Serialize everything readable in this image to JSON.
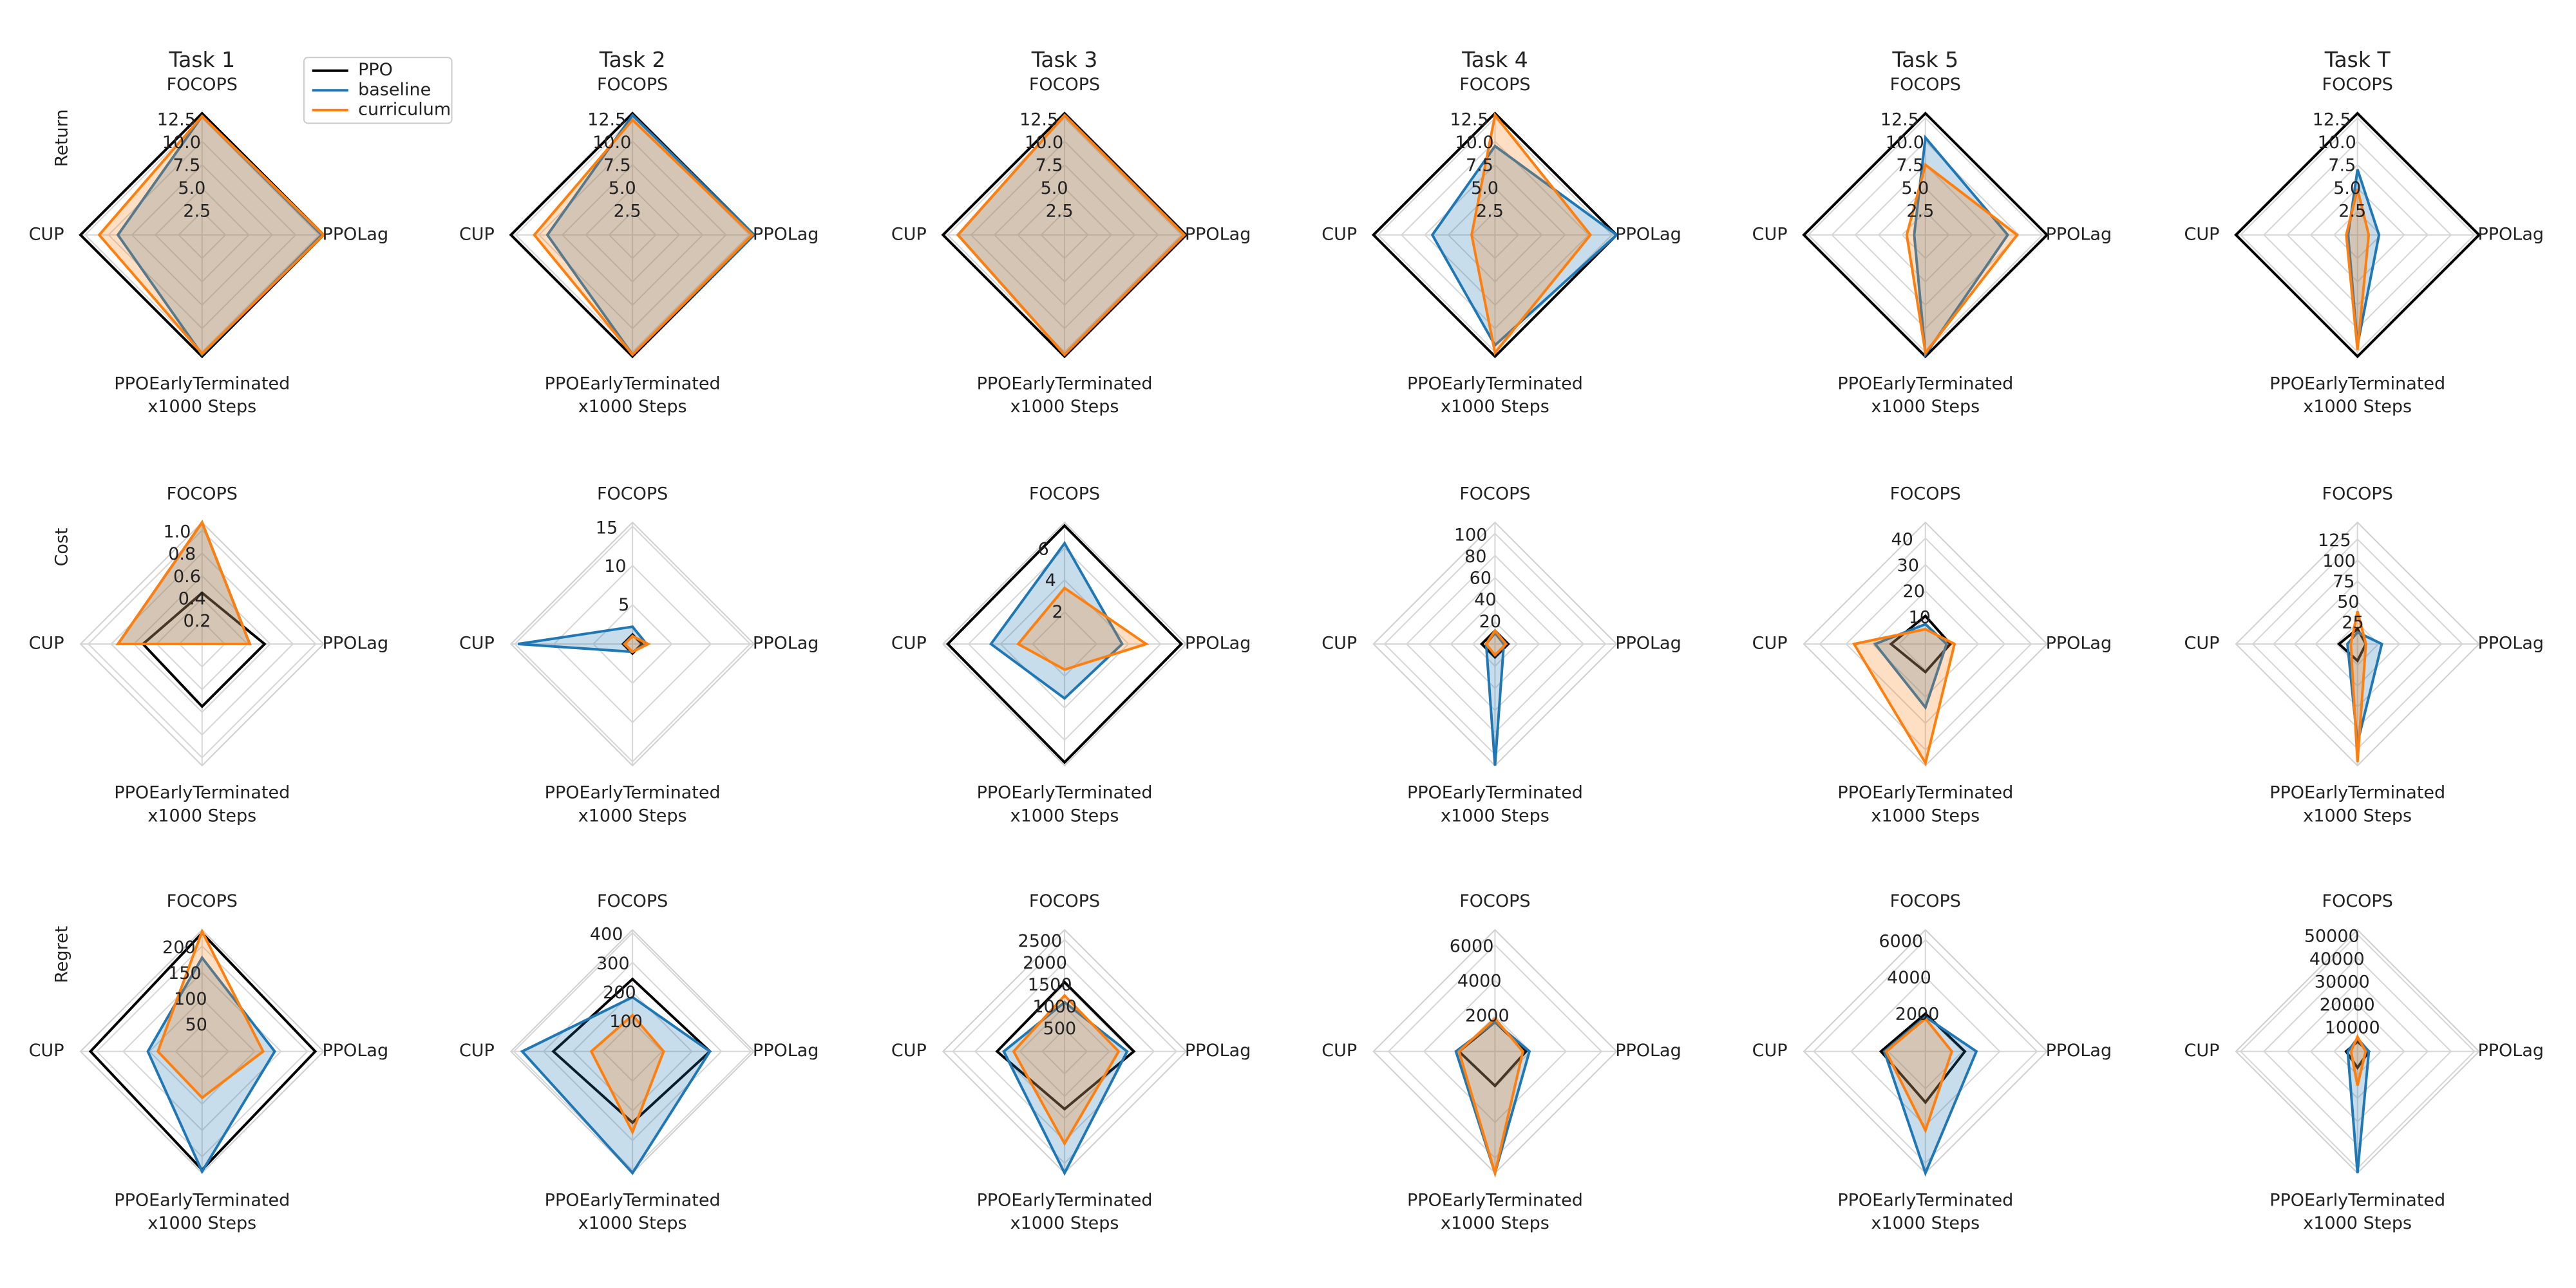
{
  "chart_data": [
    {
      "type": "radar",
      "title": "Task 1",
      "ylabel": "Return",
      "xlabel": "x1000 Steps",
      "legend": "upper right",
      "axes": [
        "FOCOPS",
        "CUP",
        "PPOEarlyTerminated",
        "PPOLag"
      ],
      "rlim": [
        0,
        13
      ],
      "rticks": [
        2.5,
        {
          "value": 5,
          "label": "5.0"
        },
        7.5,
        {
          "value": 10,
          "label": "10.0"
        },
        12.5
      ],
      "series": [
        {
          "name": "PPO",
          "color": "#000000",
          "fill": false,
          "values": [
            13,
            13,
            13,
            13
          ]
        },
        {
          "name": "baseline",
          "color": "#1f77b4",
          "fill": true,
          "values": [
            12.7,
            9,
            12.8,
            12.8
          ]
        },
        {
          "name": "curriculum",
          "color": "#ff7f0e",
          "fill": true,
          "values": [
            12.7,
            11,
            12.7,
            13
          ]
        }
      ]
    },
    {
      "type": "radar",
      "title": "Task 2",
      "xlabel": "x1000 Steps",
      "axes": [
        "FOCOPS",
        "CUP",
        "PPOEarlyTerminated",
        "PPOLag"
      ],
      "rlim": [
        0,
        13
      ],
      "rticks": [
        2.5,
        {
          "value": 5,
          "label": "5.0"
        },
        7.5,
        {
          "value": 10,
          "label": "10.0"
        },
        12.5
      ],
      "series": [
        {
          "color": "#000000",
          "fill": false,
          "values": [
            13,
            13,
            13,
            13
          ]
        },
        {
          "color": "#1f77b4",
          "fill": true,
          "values": [
            12.8,
            9.1,
            12.8,
            13
          ]
        },
        {
          "color": "#ff7f0e",
          "fill": true,
          "values": [
            12.3,
            10.5,
            12.8,
            12.8
          ]
        }
      ]
    },
    {
      "type": "radar",
      "title": "Task 3",
      "xlabel": "x1000 Steps",
      "axes": [
        "FOCOPS",
        "CUP",
        "PPOEarlyTerminated",
        "PPOLag"
      ],
      "rlim": [
        0,
        13
      ],
      "rticks": [
        2.5,
        {
          "value": 5,
          "label": "5.0"
        },
        7.5,
        {
          "value": 10,
          "label": "10.0"
        },
        12.5
      ],
      "series": [
        {
          "color": "#000000",
          "fill": false,
          "values": [
            13,
            13,
            13,
            13
          ]
        },
        {
          "color": "#1f77b4",
          "fill": true,
          "values": [
            12.8,
            11.4,
            12.8,
            12.8
          ]
        },
        {
          "color": "#ff7f0e",
          "fill": true,
          "values": [
            12.8,
            11.4,
            12.8,
            12.8
          ]
        }
      ]
    },
    {
      "type": "radar",
      "title": "Task 4",
      "xlabel": "x1000 Steps",
      "axes": [
        "FOCOPS",
        "CUP",
        "PPOEarlyTerminated",
        "PPOLag"
      ],
      "rlim": [
        0,
        13
      ],
      "rticks": [
        2.5,
        {
          "value": 5,
          "label": "5.0"
        },
        7.5,
        {
          "value": 10,
          "label": "10.0"
        },
        12.5
      ],
      "series": [
        {
          "color": "#000000",
          "fill": false,
          "values": [
            13,
            13,
            13,
            13
          ]
        },
        {
          "color": "#1f77b4",
          "fill": true,
          "values": [
            9.5,
            6.7,
            11.8,
            13
          ]
        },
        {
          "color": "#ff7f0e",
          "fill": true,
          "values": [
            12.8,
            2.5,
            12.6,
            10.2
          ]
        }
      ]
    },
    {
      "type": "radar",
      "title": "Task 5",
      "xlabel": "x1000 Steps",
      "axes": [
        "FOCOPS",
        "CUP",
        "PPOEarlyTerminated",
        "PPOLag"
      ],
      "rlim": [
        0,
        13
      ],
      "rticks": [
        2.5,
        {
          "value": 5,
          "label": "5.0"
        },
        7.5,
        {
          "value": 10,
          "label": "10.0"
        },
        12.5
      ],
      "series": [
        {
          "color": "#000000",
          "fill": false,
          "values": [
            13,
            13,
            13,
            13
          ]
        },
        {
          "color": "#1f77b4",
          "fill": true,
          "values": [
            10.4,
            1.2,
            12.8,
            8.8
          ]
        },
        {
          "color": "#ff7f0e",
          "fill": true,
          "values": [
            7.5,
            2,
            12.6,
            9.8
          ]
        }
      ]
    },
    {
      "type": "radar",
      "title": "Task T",
      "xlabel": "x1000 Steps",
      "axes": [
        "FOCOPS",
        "CUP",
        "PPOEarlyTerminated",
        "PPOLag"
      ],
      "rlim": [
        0,
        13
      ],
      "rticks": [
        2.5,
        {
          "value": 5,
          "label": "5.0"
        },
        7.5,
        {
          "value": 10,
          "label": "10.0"
        },
        12.5
      ],
      "series": [
        {
          "color": "#000000",
          "fill": false,
          "values": [
            13,
            13,
            13,
            13
          ]
        },
        {
          "color": "#1f77b4",
          "fill": true,
          "values": [
            7,
            1,
            11.8,
            2.3
          ]
        },
        {
          "color": "#ff7f0e",
          "fill": true,
          "values": [
            4.9,
            1.2,
            12.3,
            1.2
          ]
        }
      ]
    },
    {
      "type": "radar",
      "ylabel": "Cost",
      "xlabel": "x1000 Steps",
      "axes": [
        "FOCOPS",
        "CUP",
        "PPOEarlyTerminated",
        "PPOLag"
      ],
      "rlim": [
        0,
        1.07
      ],
      "rticks": [
        0.2,
        0.4,
        0.6,
        0.8,
        {
          "value": 1,
          "label": "1.0"
        }
      ],
      "series": [
        {
          "color": "#000000",
          "fill": false,
          "values": [
            0.45,
            0.52,
            0.55,
            0.55
          ]
        },
        {
          "color": "#1f77b4",
          "fill": true,
          "values": [
            1.07,
            0.74,
            0,
            0.42
          ]
        },
        {
          "color": "#ff7f0e",
          "fill": true,
          "values": [
            1.07,
            0.74,
            0,
            0.42
          ]
        }
      ]
    },
    {
      "type": "radar",
      "xlabel": "x1000 Steps",
      "axes": [
        "FOCOPS",
        "CUP",
        "PPOEarlyTerminated",
        "PPOLag"
      ],
      "rlim": [
        0,
        15.5
      ],
      "rticks": [
        5,
        10,
        15
      ],
      "series": [
        {
          "color": "#000000",
          "fill": false,
          "values": [
            1.2,
            1.2,
            1.2,
            1.2
          ]
        },
        {
          "color": "#1f77b4",
          "fill": true,
          "values": [
            2.2,
            14.6,
            1,
            1.8
          ]
        },
        {
          "color": "#ff7f0e",
          "fill": true,
          "values": [
            1,
            1,
            1,
            2
          ]
        }
      ]
    },
    {
      "type": "radar",
      "xlabel": "x1000 Steps",
      "axes": [
        "FOCOPS",
        "CUP",
        "PPOEarlyTerminated",
        "PPOLag"
      ],
      "rlim": [
        0,
        7.6
      ],
      "rticks": [
        2,
        4,
        6
      ],
      "series": [
        {
          "color": "#000000",
          "fill": false,
          "values": [
            7.4,
            7.3,
            7.4,
            7.3
          ]
        },
        {
          "color": "#1f77b4",
          "fill": true,
          "values": [
            6.3,
            4.6,
            3.4,
            3.6
          ]
        },
        {
          "color": "#ff7f0e",
          "fill": true,
          "values": [
            3.5,
            2.9,
            1.6,
            5.1
          ]
        }
      ]
    },
    {
      "type": "radar",
      "xlabel": "x1000 Steps",
      "axes": [
        "FOCOPS",
        "CUP",
        "PPOEarlyTerminated",
        "PPOLag"
      ],
      "rlim": [
        0,
        110
      ],
      "rticks": [
        20,
        40,
        60,
        80,
        100
      ],
      "series": [
        {
          "color": "#000000",
          "fill": false,
          "values": [
            12,
            12,
            12,
            12
          ]
        },
        {
          "color": "#1f77b4",
          "fill": true,
          "values": [
            10,
            8,
            110,
            8
          ]
        },
        {
          "color": "#ff7f0e",
          "fill": true,
          "values": [
            12,
            8,
            10,
            10
          ]
        }
      ]
    },
    {
      "type": "radar",
      "xlabel": "x1000 Steps",
      "axes": [
        "FOCOPS",
        "CUP",
        "PPOEarlyTerminated",
        "PPOLag"
      ],
      "rlim": [
        0,
        46
      ],
      "rticks": [
        10,
        20,
        30,
        40
      ],
      "series": [
        {
          "color": "#000000",
          "fill": false,
          "values": [
            10.6,
            13,
            10.6,
            9.4
          ]
        },
        {
          "color": "#1f77b4",
          "fill": true,
          "values": [
            7.5,
            19,
            24,
            8
          ]
        },
        {
          "color": "#ff7f0e",
          "fill": true,
          "values": [
            5.6,
            27,
            45,
            11
          ]
        }
      ]
    },
    {
      "type": "radar",
      "xlabel": "x1000 Steps",
      "axes": [
        "FOCOPS",
        "CUP",
        "PPOEarlyTerminated",
        "PPOLag"
      ],
      "rlim": [
        0,
        145
      ],
      "rticks": [
        25,
        50,
        75,
        100,
        125
      ],
      "series": [
        {
          "color": "#000000",
          "fill": false,
          "values": [
            18,
            22,
            20,
            10
          ]
        },
        {
          "color": "#1f77b4",
          "fill": true,
          "values": [
            14,
            12,
            118,
            29
          ]
        },
        {
          "color": "#ff7f0e",
          "fill": true,
          "values": [
            39,
            8,
            141,
            10
          ]
        }
      ]
    },
    {
      "type": "radar",
      "ylabel": "Regret",
      "xlabel": "x1000 Steps",
      "axes": [
        "FOCOPS",
        "CUP",
        "PPOEarlyTerminated",
        "PPOLag"
      ],
      "rlim": [
        0,
        231
      ],
      "rticks": [
        50,
        100,
        150,
        200
      ],
      "series": [
        {
          "color": "#000000",
          "fill": false,
          "values": [
            225,
            212,
            225,
            215
          ]
        },
        {
          "color": "#1f77b4",
          "fill": true,
          "values": [
            178,
            103,
            228,
            138
          ]
        },
        {
          "color": "#ff7f0e",
          "fill": true,
          "values": [
            228,
            84,
            88,
            116
          ]
        }
      ]
    },
    {
      "type": "radar",
      "xlabel": "x1000 Steps",
      "axes": [
        "FOCOPS",
        "CUP",
        "PPOEarlyTerminated",
        "PPOLag"
      ],
      "rlim": [
        0,
        410
      ],
      "rticks": [
        100,
        200,
        300,
        400
      ],
      "series": [
        {
          "color": "#000000",
          "fill": false,
          "values": [
            244,
            267,
            240,
            261
          ]
        },
        {
          "color": "#1f77b4",
          "fill": true,
          "values": [
            183,
            372,
            410,
            261
          ]
        },
        {
          "color": "#ff7f0e",
          "fill": true,
          "values": [
            122,
            139,
            272,
            105
          ]
        }
      ]
    },
    {
      "type": "radar",
      "xlabel": "x1000 Steps",
      "axes": [
        "FOCOPS",
        "CUP",
        "PPOEarlyTerminated",
        "PPOLag"
      ],
      "rlim": [
        0,
        2720
      ],
      "rticks": [
        500,
        1000,
        1500,
        2000,
        2500
      ],
      "series": [
        {
          "color": "#000000",
          "fill": false,
          "values": [
            1550,
            1510,
            1290,
            1550
          ]
        },
        {
          "color": "#1f77b4",
          "fill": true,
          "values": [
            1100,
            1360,
            2720,
            1400
          ]
        },
        {
          "color": "#ff7f0e",
          "fill": true,
          "values": [
            1250,
            1140,
            2060,
            1210
          ]
        }
      ]
    },
    {
      "type": "radar",
      "xlabel": "x1000 Steps",
      "axes": [
        "FOCOPS",
        "CUP",
        "PPOEarlyTerminated",
        "PPOLag"
      ],
      "rlim": [
        0,
        6850
      ],
      "rticks": [
        2000,
        4000,
        6000
      ],
      "series": [
        {
          "color": "#000000",
          "fill": false,
          "values": [
            1660,
            2030,
            1940,
            1750
          ]
        },
        {
          "color": "#1f77b4",
          "fill": true,
          "values": [
            1660,
            2200,
            6850,
            1940
          ]
        },
        {
          "color": "#ff7f0e",
          "fill": true,
          "values": [
            1850,
            2030,
            6850,
            1570
          ]
        }
      ]
    },
    {
      "type": "radar",
      "xlabel": "x1000 Steps",
      "axes": [
        "FOCOPS",
        "CUP",
        "PPOEarlyTerminated",
        "PPOLag"
      ],
      "rlim": [
        0,
        6540
      ],
      "rticks": [
        2000,
        4000,
        6000
      ],
      "series": [
        {
          "color": "#000000",
          "fill": false,
          "values": [
            2030,
            2390,
            2740,
            2120
          ]
        },
        {
          "color": "#1f77b4",
          "fill": true,
          "values": [
            1860,
            2210,
            6540,
            2740
          ]
        },
        {
          "color": "#ff7f0e",
          "fill": true,
          "values": [
            1770,
            2120,
            4250,
            1420
          ]
        }
      ]
    },
    {
      "type": "radar",
      "xlabel": "x1000 Steps",
      "axes": [
        "FOCOPS",
        "CUP",
        "PPOEarlyTerminated",
        "PPOLag"
      ],
      "rlim": [
        0,
        52000
      ],
      "rticks": [
        10000,
        20000,
        30000,
        40000,
        50000
      ],
      "series": [
        {
          "color": "#000000",
          "fill": false,
          "values": [
            4170,
            4860,
            6940,
            4860
          ]
        },
        {
          "color": "#1f77b4",
          "fill": true,
          "values": [
            5560,
            4170,
            52000,
            4860
          ]
        },
        {
          "color": "#ff7f0e",
          "fill": true,
          "values": [
            6250,
            2780,
            14600,
            3470
          ]
        }
      ]
    }
  ]
}
